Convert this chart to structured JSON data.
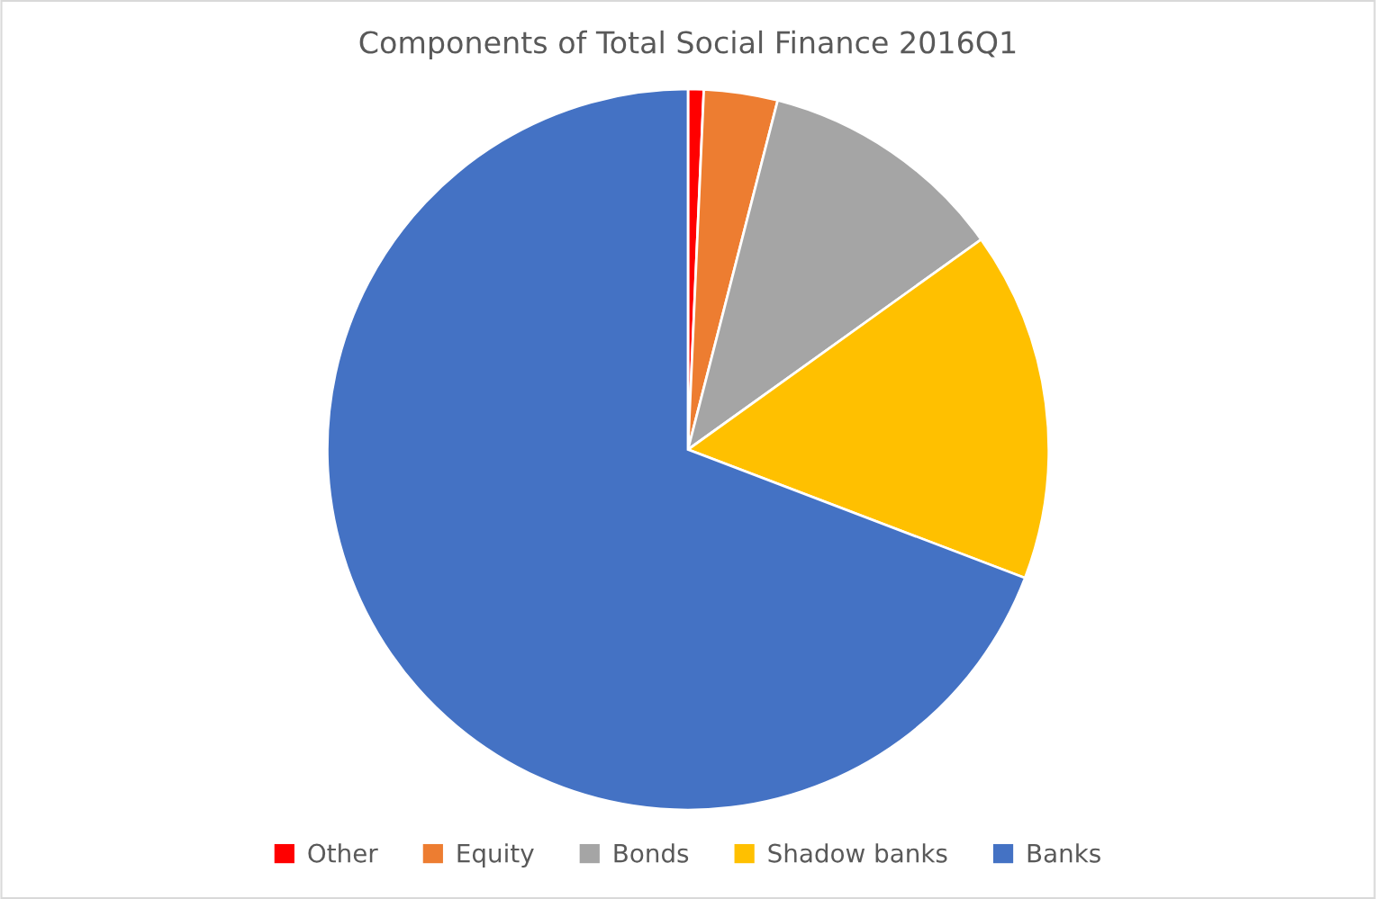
{
  "chart_data": {
    "type": "pie",
    "title": "Components of Total Social Finance 2016Q1",
    "categories": [
      "Other",
      "Equity",
      "Bonds",
      "Shadow banks",
      "Banks"
    ],
    "values": [
      0.7,
      3.3,
      11.1,
      15.7,
      69.2
    ],
    "colors": [
      "#ff0000",
      "#ed7d31",
      "#a5a5a5",
      "#ffc000",
      "#4472c4"
    ],
    "legend": "bottom"
  }
}
